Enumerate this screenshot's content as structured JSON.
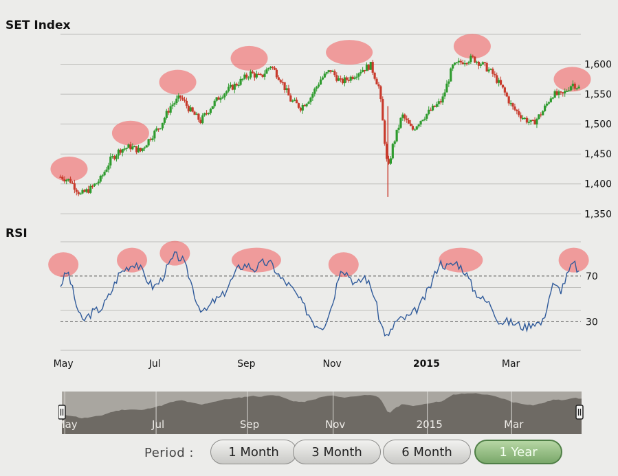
{
  "chart_data": [
    {
      "type": "candlestick",
      "title": "SET Index",
      "xlabel": "",
      "ylabel": "",
      "x_ticks": [
        "May",
        "Jul",
        "Sep",
        "Nov",
        "2015",
        "Mar"
      ],
      "y_ticks": [
        "1,350",
        "1,400",
        "1,450",
        "1,500",
        "1,550",
        "1,600"
      ],
      "ylim": [
        1340,
        1650
      ],
      "xlim": [
        "2014-05-01",
        "2015-04-30"
      ],
      "grid": true,
      "up_color": "#2e9b2e",
      "down_color": "#c83a2c",
      "highlight_color": "#f25a5a",
      "series": [
        {
          "values": [
            [
              "2014-05-01",
              1412
            ],
            [
              "2014-05-08",
              1405
            ],
            [
              "2014-05-15",
              1382
            ],
            [
              "2014-05-22",
              1392
            ],
            [
              "2014-05-29",
              1408
            ],
            [
              "2014-06-05",
              1440
            ],
            [
              "2014-06-12",
              1458
            ],
            [
              "2014-06-19",
              1462
            ],
            [
              "2014-06-26",
              1455
            ],
            [
              "2014-07-03",
              1478
            ],
            [
              "2014-07-10",
              1498
            ],
            [
              "2014-07-17",
              1530
            ],
            [
              "2014-07-24",
              1545
            ],
            [
              "2014-07-31",
              1522
            ],
            [
              "2014-08-07",
              1505
            ],
            [
              "2014-08-14",
              1528
            ],
            [
              "2014-08-21",
              1548
            ],
            [
              "2014-08-28",
              1560
            ],
            [
              "2014-09-04",
              1572
            ],
            [
              "2014-09-11",
              1585
            ],
            [
              "2014-09-18",
              1578
            ],
            [
              "2014-09-25",
              1598
            ],
            [
              "2014-10-02",
              1575
            ],
            [
              "2014-10-09",
              1540
            ],
            [
              "2014-10-16",
              1528
            ],
            [
              "2014-10-23",
              1545
            ],
            [
              "2014-10-30",
              1575
            ],
            [
              "2014-11-06",
              1590
            ],
            [
              "2014-11-13",
              1570
            ],
            [
              "2014-11-20",
              1578
            ],
            [
              "2014-11-27",
              1590
            ],
            [
              "2014-12-04",
              1598
            ],
            [
              "2014-12-10",
              1560
            ],
            [
              "2014-12-16",
              1420
            ],
            [
              "2014-12-19",
              1460
            ],
            [
              "2014-12-26",
              1515
            ],
            [
              "2015-01-02",
              1490
            ],
            [
              "2015-01-09",
              1510
            ],
            [
              "2015-01-16",
              1525
            ],
            [
              "2015-01-23",
              1540
            ],
            [
              "2015-01-30",
              1595
            ],
            [
              "2015-02-06",
              1605
            ],
            [
              "2015-02-13",
              1610
            ],
            [
              "2015-02-20",
              1600
            ],
            [
              "2015-02-27",
              1585
            ],
            [
              "2015-03-06",
              1560
            ],
            [
              "2015-03-13",
              1528
            ],
            [
              "2015-03-20",
              1512
            ],
            [
              "2015-03-27",
              1500
            ],
            [
              "2015-04-03",
              1520
            ],
            [
              "2015-04-10",
              1550
            ],
            [
              "2015-04-17",
              1548
            ],
            [
              "2015-04-24",
              1568
            ],
            [
              "2015-04-29",
              1560
            ]
          ]
        }
      ]
    },
    {
      "type": "line",
      "title": "RSI",
      "xlabel": "",
      "ylabel": "",
      "y_ticks": [
        "70",
        "30"
      ],
      "ylim": [
        5,
        100
      ],
      "reference_lines": [
        70,
        30
      ],
      "line_color": "#2f5a9a",
      "series": [
        {
          "values": [
            [
              "2014-05-01",
              62
            ],
            [
              "2014-05-06",
              75
            ],
            [
              "2014-05-12",
              45
            ],
            [
              "2014-05-16",
              30
            ],
            [
              "2014-05-23",
              38
            ],
            [
              "2014-05-30",
              42
            ],
            [
              "2014-06-05",
              55
            ],
            [
              "2014-06-11",
              72
            ],
            [
              "2014-06-17",
              78
            ],
            [
              "2014-06-23",
              82
            ],
            [
              "2014-06-30",
              68
            ],
            [
              "2014-07-05",
              60
            ],
            [
              "2014-07-10",
              66
            ],
            [
              "2014-07-15",
              78
            ],
            [
              "2014-07-20",
              88
            ],
            [
              "2014-07-25",
              85
            ],
            [
              "2014-07-30",
              70
            ],
            [
              "2014-08-05",
              45
            ],
            [
              "2014-08-10",
              38
            ],
            [
              "2014-08-16",
              48
            ],
            [
              "2014-08-22",
              52
            ],
            [
              "2014-08-28",
              65
            ],
            [
              "2014-09-03",
              78
            ],
            [
              "2014-09-08",
              80
            ],
            [
              "2014-09-14",
              76
            ],
            [
              "2014-09-20",
              82
            ],
            [
              "2014-09-26",
              80
            ],
            [
              "2014-10-02",
              68
            ],
            [
              "2014-10-08",
              62
            ],
            [
              "2014-10-14",
              52
            ],
            [
              "2014-10-20",
              40
            ],
            [
              "2014-10-26",
              28
            ],
            [
              "2014-11-01",
              26
            ],
            [
              "2014-11-07",
              45
            ],
            [
              "2014-11-13",
              78
            ],
            [
              "2014-11-18",
              72
            ],
            [
              "2014-11-24",
              62
            ],
            [
              "2014-11-30",
              70
            ],
            [
              "2014-12-06",
              55
            ],
            [
              "2014-12-11",
              28
            ],
            [
              "2014-12-16",
              15
            ],
            [
              "2014-12-21",
              30
            ],
            [
              "2015-01-01",
              35
            ],
            [
              "2015-01-08",
              45
            ],
            [
              "2015-01-15",
              62
            ],
            [
              "2015-01-21",
              82
            ],
            [
              "2015-01-27",
              78
            ],
            [
              "2015-02-02",
              82
            ],
            [
              "2015-02-08",
              74
            ],
            [
              "2015-02-14",
              58
            ],
            [
              "2015-02-20",
              50
            ],
            [
              "2015-02-26",
              45
            ],
            [
              "2015-03-04",
              30
            ],
            [
              "2015-03-10",
              30
            ],
            [
              "2015-03-16",
              28
            ],
            [
              "2015-03-22",
              25
            ],
            [
              "2015-03-28",
              30
            ],
            [
              "2015-04-03",
              28
            ],
            [
              "2015-04-10",
              62
            ],
            [
              "2015-04-16",
              58
            ],
            [
              "2015-04-21",
              72
            ],
            [
              "2015-04-25",
              82
            ],
            [
              "2015-04-29",
              72
            ]
          ]
        }
      ]
    }
  ],
  "navigator": {
    "x_ticks": [
      "May",
      "Jul",
      "Sep",
      "Nov",
      "2015",
      "Mar"
    ],
    "fill_color": "#6e6a64"
  },
  "period": {
    "label": "Period :",
    "options": [
      "1 Month",
      "3 Month",
      "6 Month",
      "1 Year"
    ],
    "selected": "1 Year"
  }
}
